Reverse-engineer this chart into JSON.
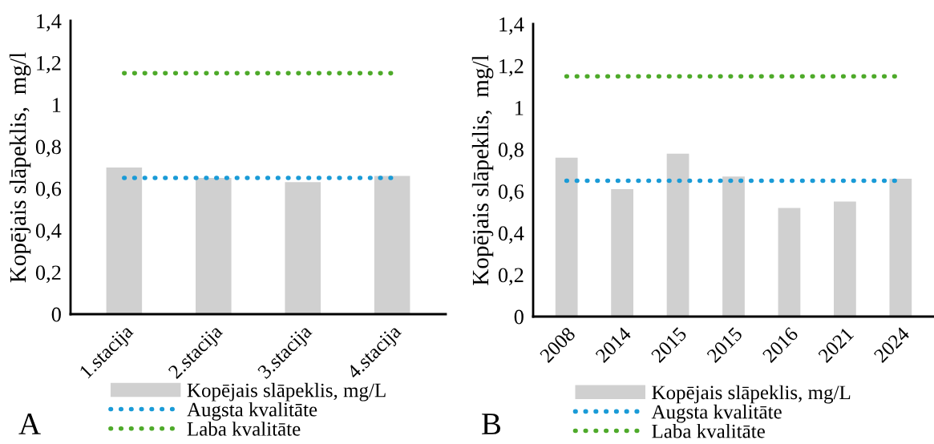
{
  "chart_data": [
    {
      "type": "bar",
      "ylabel": "Kopējais slāpeklis,  mg/l",
      "categories": [
        "1.stacija",
        "2.stacija",
        "3.stacija",
        "4.stacija"
      ],
      "ylim": [
        0,
        1.4
      ],
      "yticks": [
        0,
        {
          "value": 0.2,
          "label": "0,2"
        },
        {
          "value": 0.4,
          "label": "0,4"
        },
        {
          "value": 0.6,
          "label": "0,6"
        },
        {
          "value": 0.8,
          "label": "0,8"
        },
        1,
        {
          "value": 1.2,
          "label": "1,2"
        },
        {
          "value": 1.4,
          "label": "1,4"
        }
      ],
      "grid": false,
      "legend": "bottom",
      "annotations": [
        "A"
      ],
      "series": [
        {
          "name": "Kopējais slāpeklis, mg/L",
          "color": "#d0d0d0",
          "values": [
            0.7,
            0.65,
            0.63,
            0.66
          ]
        },
        {
          "name": "Augsta kvalitāte",
          "type": "line",
          "line_style": "dotted",
          "color": "#1a9bd7",
          "values": [
            0.65,
            0.65,
            0.65,
            0.65
          ]
        },
        {
          "name": "Laba kvalitāte",
          "type": "line",
          "line_style": "dotted",
          "color": "#4eaa2a",
          "values": [
            1.15,
            1.15,
            1.15,
            1.15
          ]
        }
      ]
    },
    {
      "type": "bar",
      "ylabel": "Kopējais slāpeklis,  mg/l",
      "categories": [
        "2008",
        "2014",
        "2015",
        "2015",
        "2016",
        "2021",
        "2024"
      ],
      "ylim": [
        0,
        1.4
      ],
      "yticks": [
        0,
        {
          "value": 0.2,
          "label": "0,2"
        },
        {
          "value": 0.4,
          "label": "0,4"
        },
        {
          "value": 0.6,
          "label": "0,6"
        },
        {
          "value": 0.8,
          "label": "0,8"
        },
        1,
        {
          "value": 1.2,
          "label": "1,2"
        },
        {
          "value": 1.4,
          "label": "1,4"
        }
      ],
      "grid": false,
      "legend": "bottom",
      "annotations": [
        "B"
      ],
      "series": [
        {
          "name": "Kopējais slāpeklis, mg/L",
          "color": "#d0d0d0",
          "values": [
            0.76,
            0.61,
            0.78,
            0.67,
            0.52,
            0.55,
            0.66
          ]
        },
        {
          "name": "Augsta kvalitāte",
          "type": "line",
          "line_style": "dotted",
          "color": "#1a9bd7",
          "values": [
            0.65,
            0.65,
            0.65,
            0.65,
            0.65,
            0.65,
            0.65
          ]
        },
        {
          "name": "Laba kvalitāte",
          "type": "line",
          "line_style": "dotted",
          "color": "#4eaa2a",
          "values": [
            1.15,
            1.15,
            1.15,
            1.15,
            1.15,
            1.15,
            1.15
          ]
        }
      ]
    }
  ]
}
